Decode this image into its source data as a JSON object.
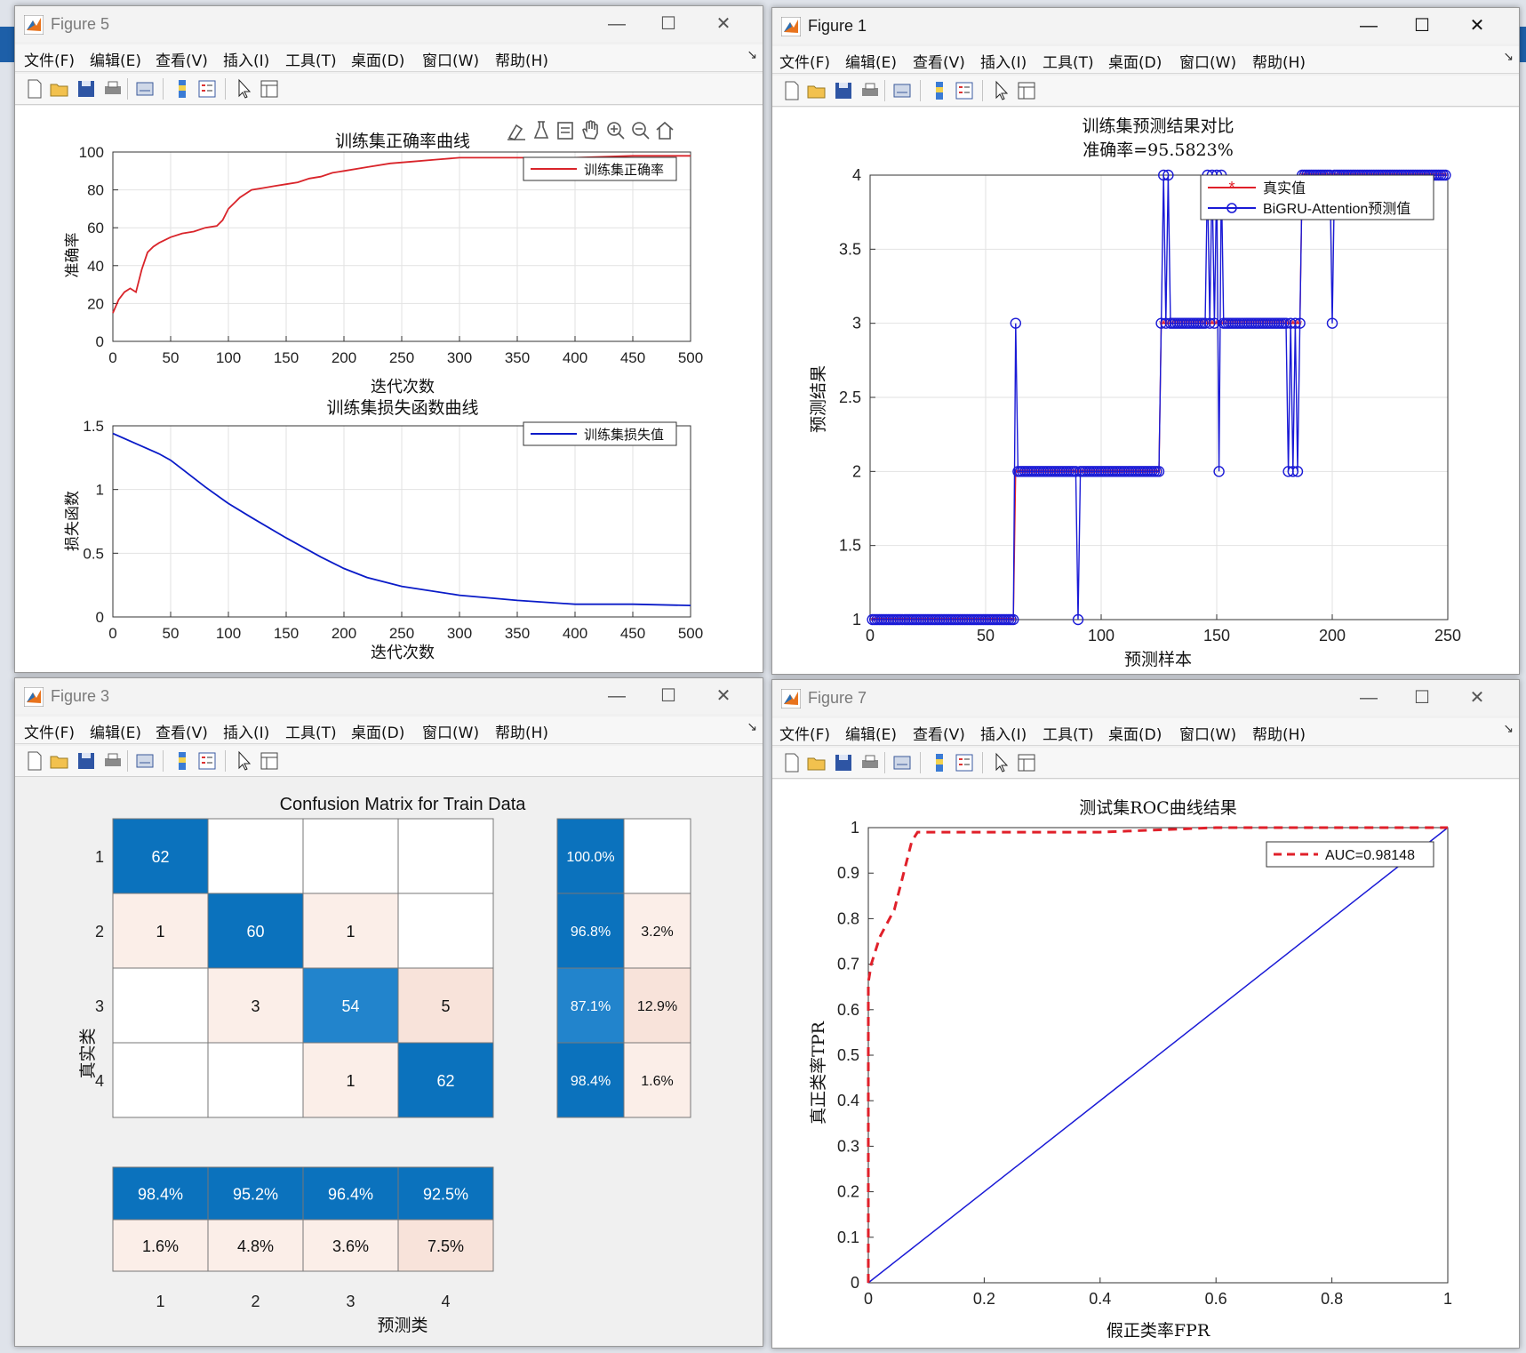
{
  "menus": [
    "文件(F)",
    "编辑(E)",
    "查看(V)",
    "插入(I)",
    "工具(T)",
    "桌面(D)",
    "窗口(W)",
    "帮助(H)"
  ],
  "window_buttons": {
    "minimize": "—",
    "maximize": "☐",
    "close": "✕"
  },
  "fig5": {
    "window_title": "Figure 5",
    "acc": {
      "title": "训练集正确率曲线",
      "xlabel": "迭代次数",
      "ylabel": "准确率",
      "legend": "训练集正确率",
      "color": "#d9242a",
      "xticks": [
        "0",
        "50",
        "100",
        "150",
        "200",
        "250",
        "300",
        "350",
        "400",
        "450",
        "500"
      ],
      "yticks": [
        "0",
        "20",
        "40",
        "60",
        "80",
        "100"
      ]
    },
    "loss": {
      "title": "训练集损失函数曲线",
      "xlabel": "迭代次数",
      "ylabel": "损失函数",
      "legend": "训练集损失值",
      "color": "#0a1bc8",
      "xticks": [
        "0",
        "50",
        "100",
        "150",
        "200",
        "250",
        "300",
        "350",
        "400",
        "450",
        "500"
      ],
      "yticks": [
        "0",
        "0.5",
        "1",
        "1.5"
      ]
    }
  },
  "fig1": {
    "window_title": "Figure 1",
    "title_line1": "训练集预测结果对比",
    "title_line2": "准确率=95.5823%",
    "xlabel": "预测样本",
    "ylabel": "预测结果",
    "legend": [
      "真实值",
      "BiGRU-Attention预测值"
    ],
    "colors": {
      "true": "#e0202a",
      "pred": "#1a1ad6"
    },
    "xticks": [
      "0",
      "50",
      "100",
      "150",
      "200",
      "250"
    ],
    "yticks": [
      "1",
      "1.5",
      "2",
      "2.5",
      "3",
      "3.5",
      "4"
    ]
  },
  "fig3": {
    "window_title": "Figure 3",
    "title": "Confusion Matrix for Train Data",
    "ylabel": "真实类",
    "xlabel": "预测类",
    "class_labels": [
      "1",
      "2",
      "3",
      "4"
    ],
    "matrix": [
      [
        "62",
        "",
        "",
        ""
      ],
      [
        "1",
        "60",
        "1",
        ""
      ],
      [
        "",
        "3",
        "54",
        "5"
      ],
      [
        "",
        "",
        "1",
        "62"
      ]
    ],
    "row_summary": [
      [
        "100.0%",
        ""
      ],
      [
        "96.8%",
        "3.2%"
      ],
      [
        "87.1%",
        "12.9%"
      ],
      [
        "98.4%",
        "1.6%"
      ]
    ],
    "col_summary": [
      [
        "98.4%",
        "95.2%",
        "96.4%",
        "92.5%"
      ],
      [
        "1.6%",
        "4.8%",
        "3.6%",
        "7.5%"
      ]
    ],
    "colors": {
      "dark": "#0b72bd",
      "mid": "#2284cc",
      "light": "#fbeee8",
      "lighter": "#f8e3da"
    }
  },
  "fig7": {
    "window_title": "Figure 7",
    "title": "测试集ROC曲线结果",
    "xlabel": "假正类率FPR",
    "ylabel": "真正类率TPR",
    "legend": "AUC=0.98148",
    "xticks": [
      "0",
      "0.2",
      "0.4",
      "0.6",
      "0.8",
      "1"
    ],
    "yticks": [
      "0",
      "0.1",
      "0.2",
      "0.3",
      "0.4",
      "0.5",
      "0.6",
      "0.7",
      "0.8",
      "0.9",
      "1"
    ]
  },
  "chart_data": [
    {
      "type": "line",
      "title": "训练集正确率曲线",
      "xlabel": "迭代次数",
      "ylabel": "准确率",
      "xlim": [
        0,
        500
      ],
      "ylim": [
        0,
        100
      ],
      "grid": true,
      "legend_position": "top-right",
      "series": [
        {
          "name": "训练集正确率",
          "x": [
            0,
            5,
            10,
            15,
            20,
            25,
            30,
            35,
            40,
            50,
            60,
            70,
            80,
            90,
            95,
            100,
            110,
            120,
            130,
            140,
            150,
            160,
            170,
            180,
            190,
            200,
            220,
            240,
            260,
            280,
            300,
            350,
            400,
            450,
            500
          ],
          "y": [
            15,
            22,
            26,
            28,
            26,
            38,
            47,
            50,
            52,
            55,
            57,
            58,
            60,
            61,
            64,
            70,
            76,
            80,
            81,
            82,
            83,
            84,
            86,
            87,
            89,
            90,
            92,
            94,
            95,
            96,
            97,
            97,
            97,
            98,
            98
          ]
        }
      ]
    },
    {
      "type": "line",
      "title": "训练集损失函数曲线",
      "xlabel": "迭代次数",
      "ylabel": "损失函数",
      "xlim": [
        0,
        500
      ],
      "ylim": [
        0,
        1.5
      ],
      "grid": true,
      "legend_position": "top-right",
      "series": [
        {
          "name": "训练集损失值",
          "x": [
            0,
            20,
            40,
            50,
            60,
            80,
            100,
            120,
            150,
            180,
            200,
            220,
            250,
            300,
            350,
            400,
            450,
            500
          ],
          "y": [
            1.44,
            1.36,
            1.28,
            1.23,
            1.16,
            1.02,
            0.89,
            0.78,
            0.62,
            0.47,
            0.38,
            0.31,
            0.24,
            0.17,
            0.13,
            0.1,
            0.1,
            0.09
          ]
        }
      ]
    },
    {
      "type": "line",
      "title": "训练集预测结果对比 准确率=95.5823%",
      "xlabel": "预测样本",
      "ylabel": "预测结果",
      "xlim": [
        0,
        250
      ],
      "ylim": [
        1,
        4
      ],
      "grid": true,
      "legend_position": "top-right",
      "series": [
        {
          "name": "真实值",
          "x": [
            1,
            62,
            63,
            125,
            126,
            186,
            187,
            249
          ],
          "y": [
            1,
            1,
            2,
            2,
            3,
            3,
            4,
            4
          ]
        },
        {
          "name": "BiGRU-Attention预测值",
          "x": [
            1,
            20,
            40,
            62,
            63,
            64,
            65,
            89,
            90,
            91,
            125,
            126,
            127,
            128,
            129,
            130,
            145,
            146,
            147,
            148,
            149,
            150,
            151,
            152,
            153,
            180,
            181,
            182,
            183,
            184,
            185,
            186,
            187,
            199,
            200,
            201,
            249
          ],
          "y": [
            1,
            1,
            1,
            1,
            3,
            2,
            2,
            2,
            1,
            2,
            2,
            3,
            4,
            3,
            4,
            3,
            3,
            4,
            3,
            4,
            3,
            4,
            2,
            4,
            3,
            3,
            2,
            3,
            2,
            3,
            2,
            3,
            4,
            4,
            3,
            4,
            4
          ]
        }
      ]
    },
    {
      "type": "heatmap",
      "title": "Confusion Matrix for Train Data",
      "xlabel": "预测类",
      "ylabel": "真实类",
      "categories": [
        "1",
        "2",
        "3",
        "4"
      ],
      "values": [
        [
          62,
          0,
          0,
          0
        ],
        [
          1,
          60,
          1,
          0
        ],
        [
          0,
          3,
          54,
          5
        ],
        [
          0,
          0,
          1,
          62
        ]
      ],
      "row_summary": [
        [
          100.0,
          0
        ],
        [
          96.8,
          3.2
        ],
        [
          87.1,
          12.9
        ],
        [
          98.4,
          1.6
        ]
      ],
      "col_summary": [
        [
          98.4,
          95.2,
          96.4,
          92.5
        ],
        [
          1.6,
          4.8,
          3.6,
          7.5
        ]
      ]
    },
    {
      "type": "line",
      "title": "测试集ROC曲线结果",
      "xlabel": "假正类率FPR",
      "ylabel": "真正类率TPR",
      "xlim": [
        0,
        1
      ],
      "ylim": [
        0,
        1
      ],
      "grid": false,
      "legend_position": "top-right",
      "series": [
        {
          "name": "AUC=0.98148",
          "style": "dashed",
          "color": "#e0202a",
          "x": [
            0,
            0.0,
            0.005,
            0.02,
            0.045,
            0.075,
            0.085,
            0.2,
            0.4,
            0.6,
            0.8,
            1.0
          ],
          "y": [
            0,
            0.66,
            0.7,
            0.76,
            0.82,
            0.97,
            0.99,
            0.99,
            0.99,
            1.0,
            1.0,
            1.0
          ]
        },
        {
          "style": "solid",
          "color": "#1a1ad6",
          "x": [
            0,
            1
          ],
          "y": [
            0,
            1
          ]
        }
      ]
    }
  ]
}
